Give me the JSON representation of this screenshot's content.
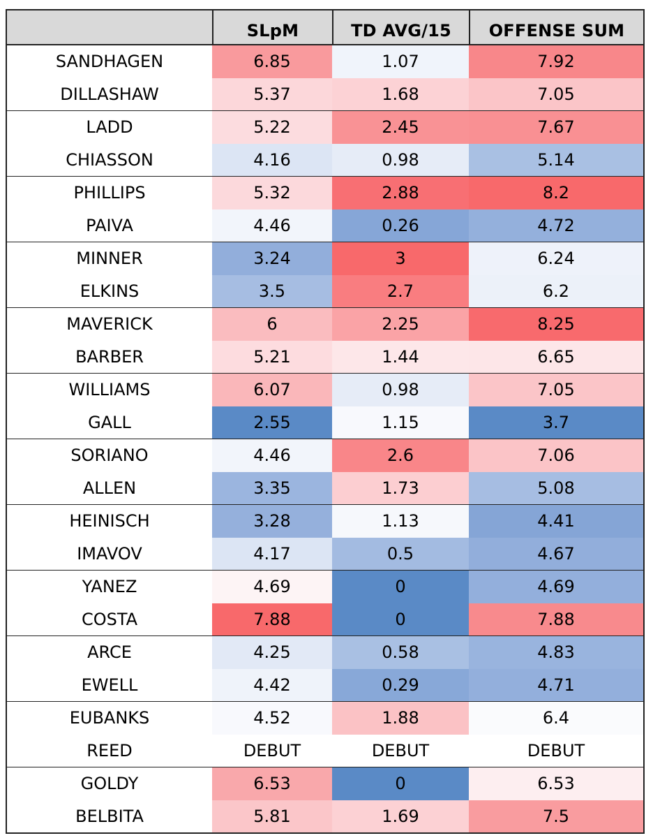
{
  "table": {
    "headers": [
      "",
      "SLpM",
      "TD AVG/15",
      "OFFENSE SUM"
    ],
    "rows": [
      {
        "name": "SANDHAGEN",
        "cells": [
          {
            "v": "6.85",
            "bg": "#f99a9d"
          },
          {
            "v": "1.07",
            "bg": "#f0f4fb"
          },
          {
            "v": "7.92",
            "bg": "#f8878a"
          }
        ]
      },
      {
        "name": "DILLASHAW",
        "cells": [
          {
            "v": "5.37",
            "bg": "#fcd7da"
          },
          {
            "v": "1.68",
            "bg": "#fcd2d5"
          },
          {
            "v": "7.05",
            "bg": "#fbc5c8"
          }
        ]
      },
      {
        "name": "LADD",
        "cells": [
          {
            "v": "5.22",
            "bg": "#fcdcdf"
          },
          {
            "v": "2.45",
            "bg": "#f99295"
          },
          {
            "v": "7.67",
            "bg": "#f99093"
          }
        ]
      },
      {
        "name": "CHIASSON",
        "cells": [
          {
            "v": "4.16",
            "bg": "#dce5f4"
          },
          {
            "v": "0.98",
            "bg": "#e6ecf7"
          },
          {
            "v": "5.14",
            "bg": "#a9c0e3"
          }
        ]
      },
      {
        "name": "PHILLIPS",
        "cells": [
          {
            "v": "5.32",
            "bg": "#fcd9dc"
          },
          {
            "v": "2.88",
            "bg": "#f86f73"
          },
          {
            "v": "8.2",
            "bg": "#f8696b"
          }
        ]
      },
      {
        "name": "PAIVA",
        "cells": [
          {
            "v": "4.46",
            "bg": "#f2f5fb"
          },
          {
            "v": "0.26",
            "bg": "#86a6d7"
          },
          {
            "v": "4.72",
            "bg": "#94b0dc"
          }
        ]
      },
      {
        "name": "MINNER",
        "cells": [
          {
            "v": "3.24",
            "bg": "#92aedb"
          },
          {
            "v": "3",
            "bg": "#f8696b"
          },
          {
            "v": "6.24",
            "bg": "#eef2fa"
          }
        ]
      },
      {
        "name": "ELKINS",
        "cells": [
          {
            "v": "3.5",
            "bg": "#a6bde2"
          },
          {
            "v": "2.7",
            "bg": "#f97d80"
          },
          {
            "v": "6.2",
            "bg": "#ecf1f9"
          }
        ]
      },
      {
        "name": "MAVERICK",
        "cells": [
          {
            "v": "6",
            "bg": "#fabcbf"
          },
          {
            "v": "2.25",
            "bg": "#faa3a6"
          },
          {
            "v": "8.25",
            "bg": "#f86a6d"
          }
        ]
      },
      {
        "name": "BARBER",
        "cells": [
          {
            "v": "5.21",
            "bg": "#fddcdf"
          },
          {
            "v": "1.44",
            "bg": "#fde7e9"
          },
          {
            "v": "6.65",
            "bg": "#fde6e8"
          }
        ]
      },
      {
        "name": "WILLIAMS",
        "cells": [
          {
            "v": "6.07",
            "bg": "#fab7ba"
          },
          {
            "v": "0.98",
            "bg": "#e6ecf7"
          },
          {
            "v": "7.05",
            "bg": "#fbc5c8"
          }
        ]
      },
      {
        "name": "GALL",
        "cells": [
          {
            "v": "2.55",
            "bg": "#5a8ac6"
          },
          {
            "v": "1.15",
            "bg": "#f8f9fd"
          },
          {
            "v": "3.7",
            "bg": "#5a8ac6"
          }
        ]
      },
      {
        "name": "SORIANO",
        "cells": [
          {
            "v": "4.46",
            "bg": "#f2f5fb"
          },
          {
            "v": "2.6",
            "bg": "#f98689"
          },
          {
            "v": "7.06",
            "bg": "#fbc4c7"
          }
        ]
      },
      {
        "name": "ALLEN",
        "cells": [
          {
            "v": "3.35",
            "bg": "#9bb5df"
          },
          {
            "v": "1.73",
            "bg": "#fcced1"
          },
          {
            "v": "5.08",
            "bg": "#a6bde2"
          }
        ]
      },
      {
        "name": "HEINISCH",
        "cells": [
          {
            "v": "3.28",
            "bg": "#95b0dc"
          },
          {
            "v": "1.13",
            "bg": "#f6f8fc"
          },
          {
            "v": "4.41",
            "bg": "#85a5d6"
          }
        ]
      },
      {
        "name": "IMAVOV",
        "cells": [
          {
            "v": "4.17",
            "bg": "#dce5f4"
          },
          {
            "v": "0.5",
            "bg": "#a3bbe1"
          },
          {
            "v": "4.67",
            "bg": "#92aedb"
          }
        ]
      },
      {
        "name": "YANEZ",
        "cells": [
          {
            "v": "4.69",
            "bg": "#fdf4f5"
          },
          {
            "v": "0",
            "bg": "#5a8ac6"
          },
          {
            "v": "4.69",
            "bg": "#93afdc"
          }
        ]
      },
      {
        "name": "COSTA",
        "cells": [
          {
            "v": "7.88",
            "bg": "#f8696b"
          },
          {
            "v": "0",
            "bg": "#5a8ac6"
          },
          {
            "v": "7.88",
            "bg": "#f88a8d"
          }
        ]
      },
      {
        "name": "ARCE",
        "cells": [
          {
            "v": "4.25",
            "bg": "#e2e9f6"
          },
          {
            "v": "0.58",
            "bg": "#a9c0e3"
          },
          {
            "v": "4.83",
            "bg": "#99b4de"
          }
        ]
      },
      {
        "name": "EWELL",
        "cells": [
          {
            "v": "4.42",
            "bg": "#eff3fa"
          },
          {
            "v": "0.29",
            "bg": "#88a8d8"
          },
          {
            "v": "4.71",
            "bg": "#93afdc"
          }
        ]
      },
      {
        "name": "EUBANKS",
        "cells": [
          {
            "v": "4.52",
            "bg": "#f8f9fd"
          },
          {
            "v": "1.88",
            "bg": "#fbc2c5"
          },
          {
            "v": "6.4",
            "bg": "#fafbfd"
          }
        ]
      },
      {
        "name": "REED",
        "cells": [
          {
            "v": "DEBUT",
            "bg": "#ffffff"
          },
          {
            "v": "DEBUT",
            "bg": "#ffffff"
          },
          {
            "v": "DEBUT",
            "bg": "#ffffff"
          }
        ]
      },
      {
        "name": "GOLDY",
        "cells": [
          {
            "v": "6.53",
            "bg": "#f9a8ab"
          },
          {
            "v": "0",
            "bg": "#5a8ac6"
          },
          {
            "v": "6.53",
            "bg": "#fdeef0"
          }
        ]
      },
      {
        "name": "BELBITA",
        "cells": [
          {
            "v": "5.81",
            "bg": "#fbc6c9"
          },
          {
            "v": "1.69",
            "bg": "#fcd1d4"
          },
          {
            "v": "7.5",
            "bg": "#f99c9f"
          }
        ]
      }
    ]
  }
}
